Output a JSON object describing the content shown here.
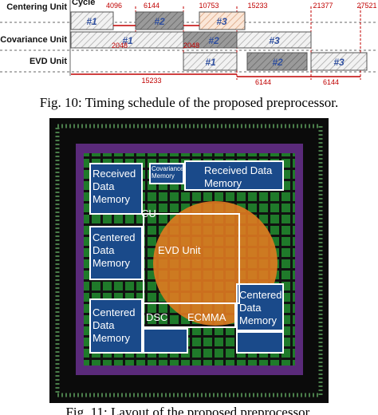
{
  "figure10": {
    "cycle_label": "Cycle",
    "rows": [
      "Centering Unit",
      "Covariance Unit",
      "EVD Unit"
    ],
    "ticks": [
      "4096",
      "6144",
      "10753",
      "15233",
      "21377",
      "27521"
    ],
    "blocks": [
      [
        "#1",
        "#2",
        "#3"
      ],
      [
        "#1",
        "#2",
        "#3"
      ],
      [
        "#1",
        "#2",
        "#3"
      ]
    ],
    "intervals": [
      "2048",
      "2048",
      "15233",
      "6144",
      "6144"
    ],
    "caption": "Fig. 10: Timing schedule of the proposed preprocessor."
  },
  "figure11": {
    "labels": [
      "Received Data Memory",
      "Covariance Memory",
      "Received Data Memory",
      "CU",
      "Centered Data Memory",
      "EVD Unit",
      "Centered Data Memory",
      "DSC",
      "ECMMA",
      "Centered Data Memory"
    ],
    "caption": "Fig. 11: Layout of the proposed preprocessor."
  }
}
